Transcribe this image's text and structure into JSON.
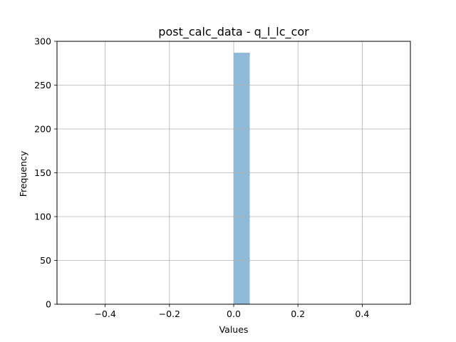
{
  "chart_data": {
    "type": "bar",
    "title": "post_calc_data - q_l_lc_cor",
    "xlabel": "Values",
    "ylabel": "Frequency",
    "xlim": [
      -0.55,
      0.55
    ],
    "ylim": [
      0,
      300
    ],
    "xticks": [
      -0.4,
      -0.2,
      0.0,
      0.2,
      0.4
    ],
    "xtick_labels": [
      "−0.4",
      "−0.2",
      "0.0",
      "0.2",
      "0.4"
    ],
    "yticks": [
      0,
      50,
      100,
      150,
      200,
      250,
      300
    ],
    "ytick_labels": [
      "0",
      "50",
      "100",
      "150",
      "200",
      "250",
      "300"
    ],
    "bins": [
      {
        "x0": 0.0,
        "x1": 0.05,
        "count": 287
      }
    ],
    "grid": true,
    "colors": {
      "bar": "#8fbbd9",
      "grid": "#b0b0b0",
      "axis": "#000000"
    }
  }
}
